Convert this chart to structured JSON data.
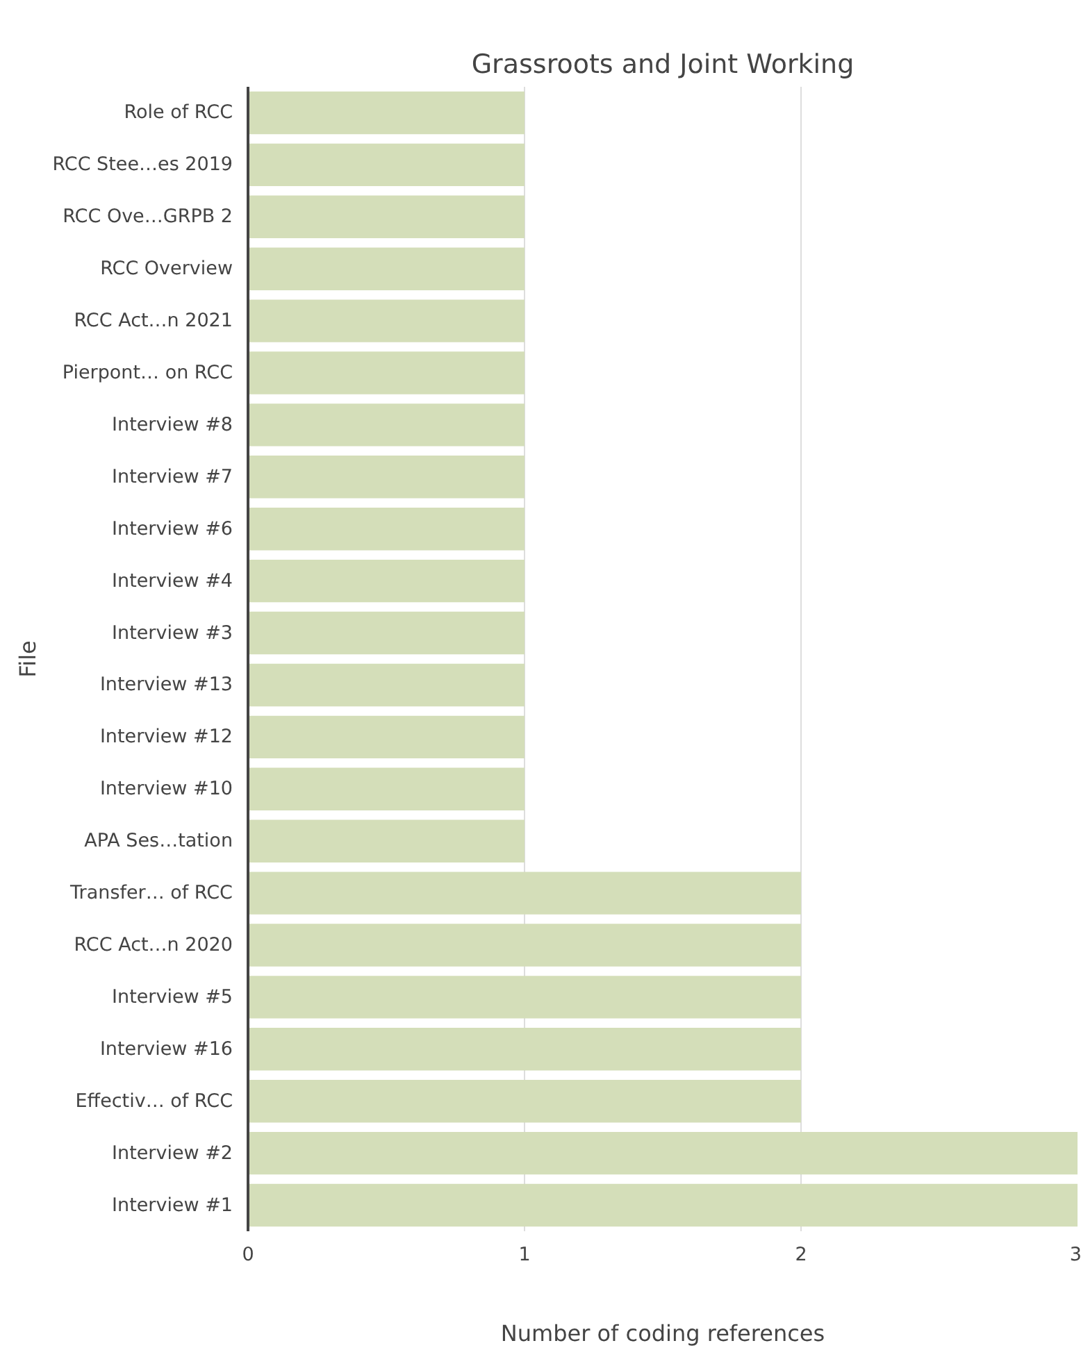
{
  "chart_data": {
    "type": "bar",
    "orientation": "horizontal",
    "title": "Grassroots and Joint Working",
    "xlabel": "Number of coding references",
    "ylabel": "File",
    "categories": [
      "Role of RCC",
      "RCC Stee…es 2019",
      "RCC Ove…GRPB 2",
      "RCC Overview",
      "RCC Act…n 2021",
      "Pierpont… on RCC",
      "Interview #8",
      "Interview #7",
      "Interview #6",
      "Interview #4",
      "Interview #3",
      "Interview #13",
      "Interview #12",
      "Interview #10",
      "APA Ses…tation",
      "Transfer… of RCC",
      "RCC Act…n 2020",
      "Interview #5",
      "Interview #16",
      "Effectiv… of RCC",
      "Interview #2",
      "Interview #1"
    ],
    "values": [
      1,
      1,
      1,
      1,
      1,
      1,
      1,
      1,
      1,
      1,
      1,
      1,
      1,
      1,
      1,
      2,
      2,
      2,
      2,
      2,
      3,
      3
    ],
    "color": "#d4deb9",
    "xlim": [
      0,
      3
    ],
    "xticks": [
      0,
      1,
      2,
      3
    ],
    "grid": "x"
  }
}
